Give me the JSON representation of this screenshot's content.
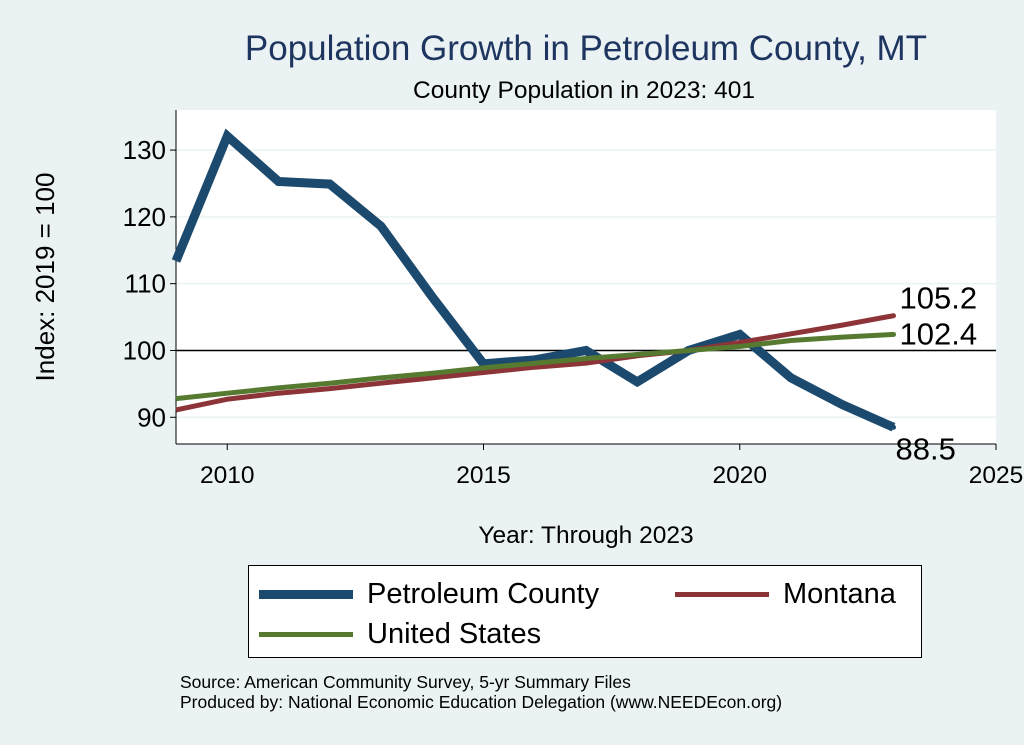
{
  "chart_data": {
    "type": "line",
    "title": "Population Growth in Petroleum County, MT",
    "subtitle": "County Population in 2023: 401",
    "xlabel": "Year: Through 2023",
    "ylabel": "Index: 2019 = 100",
    "xlim": [
      2009,
      2025
    ],
    "ylim": [
      86,
      136
    ],
    "xticks": [
      2010,
      2015,
      2020,
      2025
    ],
    "yticks": [
      90,
      100,
      110,
      120,
      130
    ],
    "reference_line": 100,
    "x": [
      2009,
      2010,
      2011,
      2012,
      2013,
      2014,
      2015,
      2016,
      2017,
      2018,
      2019,
      2020,
      2021,
      2022,
      2023
    ],
    "series": [
      {
        "name": "Petroleum  County",
        "color": "#1b4a6e",
        "values": [
          113.4,
          132.1,
          125.3,
          124.9,
          118.6,
          108.0,
          98.0,
          98.6,
          100.0,
          95.3,
          100.0,
          102.4,
          95.9,
          91.9,
          88.5
        ],
        "end_label": "88.5"
      },
      {
        "name": "Montana",
        "color": "#8c3438",
        "values": [
          91.1,
          92.7,
          93.6,
          94.3,
          95.1,
          95.9,
          96.7,
          97.5,
          98.1,
          99.2,
          100.0,
          101.2,
          102.5,
          103.8,
          105.2
        ],
        "end_label": "105.2"
      },
      {
        "name": "United States",
        "color": "#557a30",
        "values": [
          92.8,
          93.6,
          94.4,
          95.1,
          95.9,
          96.6,
          97.4,
          98.1,
          98.8,
          99.4,
          100.0,
          100.6,
          101.5,
          102.0,
          102.4
        ],
        "end_label": "102.4"
      }
    ]
  },
  "legend": {
    "items": [
      {
        "label": "Petroleum  County",
        "color": "#1b4a6e"
      },
      {
        "label": "Montana",
        "color": "#8c3438"
      },
      {
        "label": "United States",
        "color": "#557a30"
      }
    ]
  },
  "footer": {
    "source": "Source: American Community Survey, 5-yr Summary Files",
    "produced_by": "Produced by: National Economic Education Delegation (www.NEEDEcon.org)"
  }
}
